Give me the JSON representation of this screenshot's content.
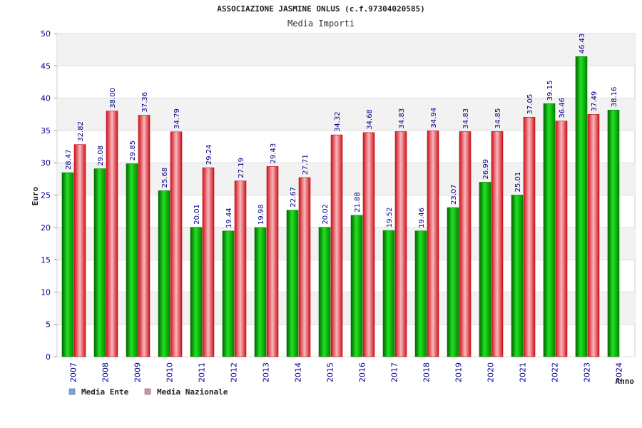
{
  "chart_data": {
    "type": "bar",
    "title": "ASSOCIAZIONE JASMINE ONLUS (c.f.97304020585)",
    "subtitle": "Media Importi",
    "xlabel": "Anno",
    "ylabel": "Euro",
    "ylim": [
      0,
      50
    ],
    "yticks": [
      "0",
      "5",
      "10",
      "15",
      "20",
      "25",
      "30",
      "35",
      "40",
      "45",
      "50"
    ],
    "grid": true,
    "legend_position": "bottom-left",
    "categories": [
      "2007",
      "2008",
      "2009",
      "2010",
      "2011",
      "2012",
      "2013",
      "2014",
      "2015",
      "2016",
      "2017",
      "2018",
      "2019",
      "2020",
      "2021",
      "2022",
      "2023",
      "2024"
    ],
    "series": [
      {
        "name": "Media Ente",
        "color": "#00a000",
        "legend_color": "#6fa8e0",
        "values": [
          28.47,
          29.08,
          29.85,
          25.68,
          20.01,
          19.44,
          19.98,
          22.67,
          20.02,
          21.88,
          19.52,
          19.46,
          23.07,
          26.99,
          25.01,
          39.15,
          46.43,
          38.16
        ],
        "labels": [
          "28.47",
          "29.08",
          "29.85",
          "25.68",
          "20.01",
          "19.44",
          "19.98",
          "22.67",
          "20.02",
          "21.88",
          "19.52",
          "19.46",
          "23.07",
          "26.99",
          "25.01",
          "39.15",
          "46.43",
          "38.16"
        ]
      },
      {
        "name": "Media Nazionale",
        "color": "#e0202a",
        "legend_color": "#d98ab5",
        "values": [
          32.82,
          38.0,
          37.36,
          34.79,
          29.24,
          27.19,
          29.43,
          27.71,
          34.32,
          34.68,
          34.83,
          34.94,
          34.83,
          34.85,
          37.05,
          36.46,
          37.49,
          null
        ],
        "labels": [
          "32.82",
          "38.00",
          "37.36",
          "34.79",
          "29.24",
          "27.19",
          "29.43",
          "27.71",
          "34.32",
          "34.68",
          "34.83",
          "34.94",
          "34.83",
          "34.85",
          "37.05",
          "36.46",
          "37.49",
          ""
        ]
      }
    ]
  }
}
